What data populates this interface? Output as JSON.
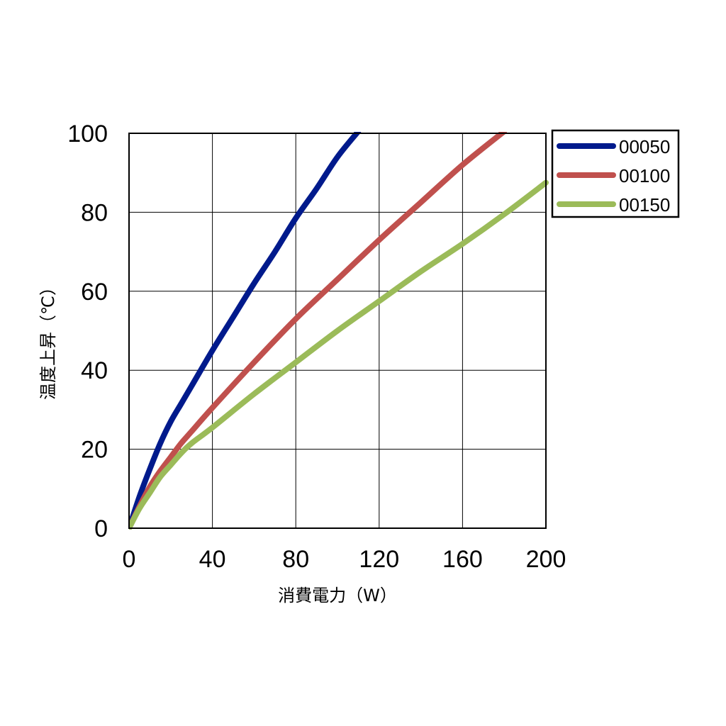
{
  "chart_data": {
    "type": "line",
    "xlabel": "消費電力（W）",
    "ylabel": "温度上昇（℃）",
    "xlim": [
      0,
      200
    ],
    "ylim": [
      0,
      100
    ],
    "xticks": [
      0,
      40,
      80,
      120,
      160,
      200
    ],
    "yticks": [
      0,
      20,
      40,
      60,
      80,
      100
    ],
    "grid": true,
    "legend_position": "top-right-outside",
    "series": [
      {
        "name": "00050",
        "color": "#001a8c",
        "x": [
          0,
          5,
          10,
          15,
          20,
          25,
          30,
          40,
          50,
          60,
          70,
          80,
          90,
          100,
          110
        ],
        "y": [
          0,
          8,
          15,
          21.5,
          27,
          31.5,
          36,
          45,
          53.5,
          62,
          70,
          78.5,
          86,
          94,
          100.5
        ]
      },
      {
        "name": "00100",
        "color": "#c0504d",
        "x": [
          0,
          5,
          10,
          15,
          20,
          25,
          30,
          40,
          60,
          80,
          100,
          120,
          140,
          160,
          180
        ],
        "y": [
          0,
          5.5,
          10.5,
          14.5,
          18,
          21.5,
          24.5,
          30.5,
          42,
          53,
          63,
          73,
          82.5,
          92,
          100.5
        ]
      },
      {
        "name": "00150",
        "color": "#9bbb59",
        "x": [
          0,
          5,
          10,
          15,
          20,
          25,
          30,
          40,
          60,
          80,
          100,
          120,
          140,
          160,
          180,
          200
        ],
        "y": [
          0,
          5,
          9,
          13,
          16,
          19,
          21.5,
          25.5,
          34,
          42,
          50,
          57.5,
          65,
          72,
          79.5,
          87.5
        ]
      }
    ]
  }
}
